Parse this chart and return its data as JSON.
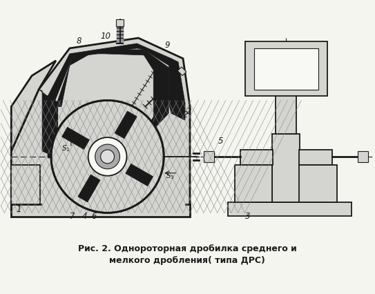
{
  "title_line1": "Рис. 2. Однороторная дробилка среднего и",
  "title_line2": "мелкого дробления( типа ДРС)",
  "bg_color": "#f5f5f0",
  "fig_width": 5.43,
  "fig_height": 4.27,
  "dpi": 100,
  "black": "#1a1a1a",
  "gray_light": "#d4d4d0",
  "gray_mid": "#aaaaaa",
  "gray_dark": "#666666",
  "white": "#f8f8f5"
}
